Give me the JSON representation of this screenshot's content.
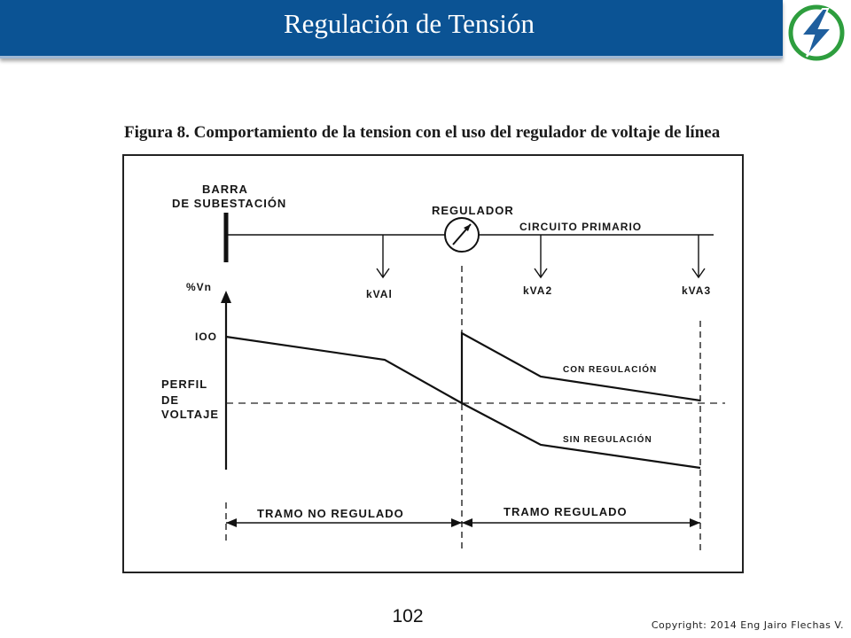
{
  "header": {
    "title": "Regulación de Tensión",
    "logo_icon": "lightning-bolt-icon",
    "bar_color": "#0b5394",
    "logo_color": "#2e9e3e"
  },
  "figure": {
    "caption": "Figura 8. Comportamiento de la tension con el uso del regulador de voltaje de línea",
    "labels": {
      "barra": "BARRA",
      "subestacion": "DE SUBESTACIÓN",
      "regulador": "REGULADOR",
      "circuito": "CIRCUITO PRIMARIO",
      "load1": "kVAl",
      "load2": "kVA2",
      "load3": "kVA3",
      "axis_unit": "%Vn",
      "tick_100": "IOO",
      "perfil": "PERFIL",
      "de": "DE",
      "voltaje": "VOLTAJE",
      "con_regulacion": "CON REGULACIÓN",
      "sin_regulacion": "SIN REGULACIÓN",
      "tramo_no_regulado": "TRAMO NO REGULADO",
      "tramo_regulado": "TRAMO REGULADO"
    }
  },
  "footer": {
    "page_number": "102",
    "copyright": "Copyright: 2014 Eng Jairo Flechas V."
  }
}
